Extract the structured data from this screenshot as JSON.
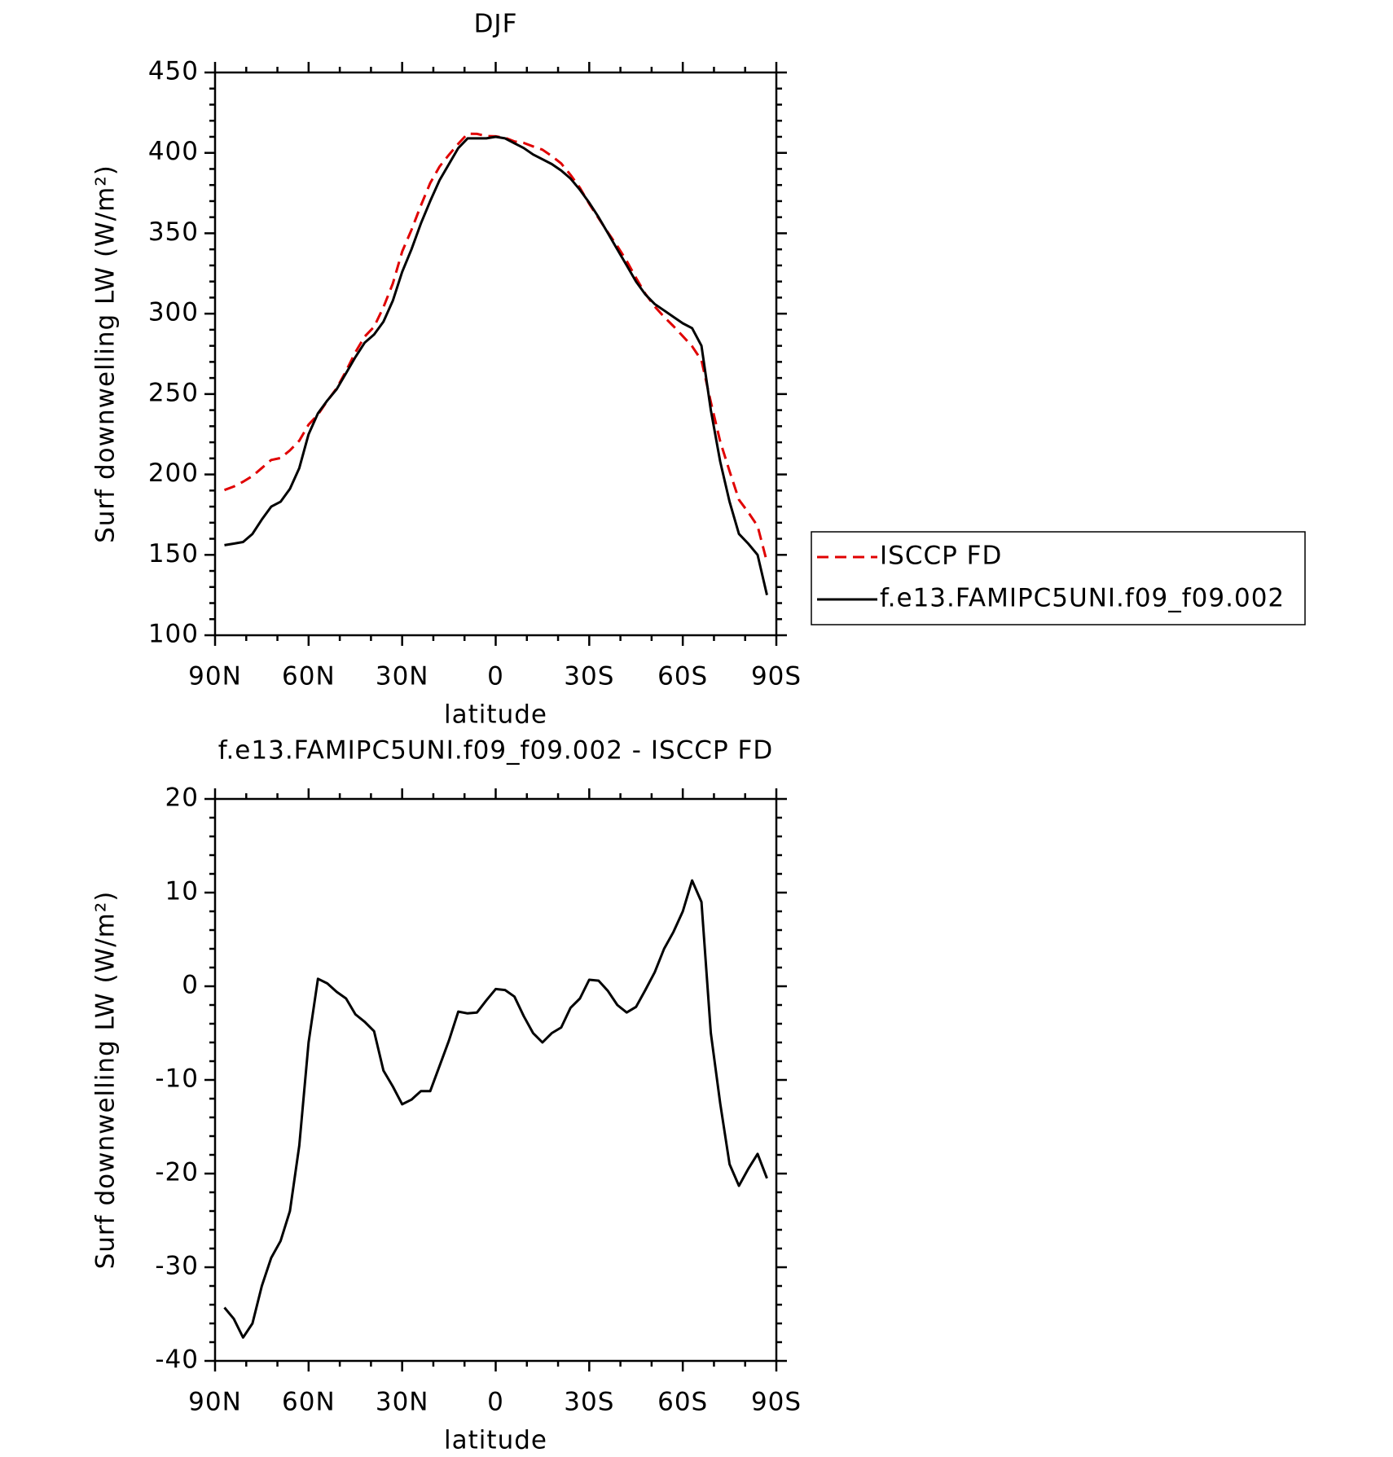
{
  "chart_data": [
    {
      "type": "line",
      "title": "DJF",
      "xlabel": "latitude",
      "ylabel": "Surf downwelling LW (W/m²)",
      "x": [
        87,
        84,
        81,
        78,
        75,
        72,
        69,
        66,
        63,
        60,
        57,
        54,
        51,
        48,
        45,
        42,
        39,
        36,
        33,
        30,
        27,
        24,
        21,
        18,
        15,
        12,
        9,
        6,
        3,
        0,
        -3,
        -6,
        -9,
        -12,
        -15,
        -18,
        -21,
        -24,
        -27,
        -30,
        -33,
        -36,
        -39,
        -42,
        -45,
        -48,
        -51,
        -54,
        -57,
        -60,
        -63,
        -66,
        -69,
        -72,
        -75,
        -78,
        -81,
        -84,
        -87
      ],
      "series": [
        {
          "name": "ISCCP FD",
          "color": "#e00000",
          "dashed": true,
          "values": [
            190.3,
            192.5,
            195.5,
            199,
            204,
            209,
            210.2,
            215,
            221,
            231,
            237.2,
            245.7,
            253.6,
            264.3,
            276,
            285.8,
            291.8,
            304,
            318.7,
            338.6,
            352.1,
            367.2,
            381.2,
            391.5,
            398.8,
            405.7,
            411.9,
            411.8,
            410.5,
            410.3,
            409.4,
            407.1,
            406.2,
            404,
            402,
            398,
            393.4,
            386.3,
            378.3,
            368.3,
            359.4,
            350.5,
            342,
            332.8,
            322.2,
            312.4,
            304.5,
            298,
            292.2,
            286,
            279.7,
            271,
            245,
            220.5,
            202,
            184.3,
            176.5,
            167.9,
            145.5
          ]
        },
        {
          "name": "f.e13.FAMIPC5UNI.f09_f09.002",
          "color": "#000000",
          "dashed": false,
          "values": [
            156,
            157,
            158,
            163,
            172,
            180,
            183,
            191,
            204,
            225,
            238,
            246,
            253,
            263,
            273,
            282,
            287,
            295,
            308,
            326,
            340,
            356,
            370,
            383,
            393,
            403,
            409,
            409,
            409,
            410,
            409,
            406,
            403,
            399,
            396,
            393,
            389,
            384,
            377,
            369,
            360,
            350,
            340,
            330,
            320,
            312,
            306,
            302,
            298,
            294,
            291,
            280,
            240,
            208,
            183,
            163,
            157,
            150,
            125
          ]
        }
      ],
      "xlim": [
        90,
        -90
      ],
      "xticks": [
        {
          "value": 90,
          "label": "90N"
        },
        {
          "value": 60,
          "label": "60N"
        },
        {
          "value": 30,
          "label": "30N"
        },
        0,
        {
          "value": -30,
          "label": "30S"
        },
        {
          "value": -60,
          "label": "60S"
        },
        {
          "value": -90,
          "label": "90S"
        }
      ],
      "ylim": [
        100,
        450
      ],
      "yticks": [
        100,
        150,
        200,
        250,
        300,
        350,
        400,
        450
      ],
      "legend": "outside-right"
    },
    {
      "type": "line",
      "title": "f.e13.FAMIPC5UNI.f09_f09.002 - ISCCP FD",
      "xlabel": "latitude",
      "ylabel": "Surf downwelling LW (W/m²)",
      "x": [
        87,
        84,
        81,
        78,
        75,
        72,
        69,
        66,
        63,
        60,
        57,
        54,
        51,
        48,
        45,
        42,
        39,
        36,
        33,
        30,
        27,
        24,
        21,
        18,
        15,
        12,
        9,
        6,
        3,
        0,
        -3,
        -6,
        -9,
        -12,
        -15,
        -18,
        -21,
        -24,
        -27,
        -30,
        -33,
        -36,
        -39,
        -42,
        -45,
        -48,
        -51,
        -54,
        -57,
        -60,
        -63,
        -66,
        -69,
        -72,
        -75,
        -78,
        -81,
        -84,
        -87
      ],
      "series": [
        {
          "color": "#000000",
          "dashed": false,
          "values": [
            -34.3,
            -35.5,
            -37.5,
            -36,
            -32,
            -29,
            -27.2,
            -24,
            -17,
            -6,
            0.8,
            0.3,
            -0.6,
            -1.3,
            -3,
            -3.8,
            -4.8,
            -9,
            -10.7,
            -12.6,
            -12.1,
            -11.2,
            -11.2,
            -8.5,
            -5.8,
            -2.7,
            -2.9,
            -2.8,
            -1.5,
            -0.3,
            -0.4,
            -1.1,
            -3.2,
            -5,
            -6,
            -5,
            -4.4,
            -2.3,
            -1.3,
            0.7,
            0.6,
            -0.5,
            -2,
            -2.8,
            -2.2,
            -0.4,
            1.5,
            4,
            5.8,
            8,
            11.3,
            9,
            -5,
            -12.5,
            -19,
            -21.3,
            -19.5,
            -17.9,
            -20.5
          ]
        }
      ],
      "xlim": [
        90,
        -90
      ],
      "xticks": [
        {
          "value": 90,
          "label": "90N"
        },
        {
          "value": 60,
          "label": "60N"
        },
        {
          "value": 30,
          "label": "30N"
        },
        0,
        {
          "value": -30,
          "label": "30S"
        },
        {
          "value": -60,
          "label": "60S"
        },
        {
          "value": -90,
          "label": "90S"
        }
      ],
      "ylim": [
        -40,
        20
      ],
      "yticks": [
        -40,
        -30,
        -20,
        -10,
        0,
        10,
        20
      ]
    }
  ]
}
